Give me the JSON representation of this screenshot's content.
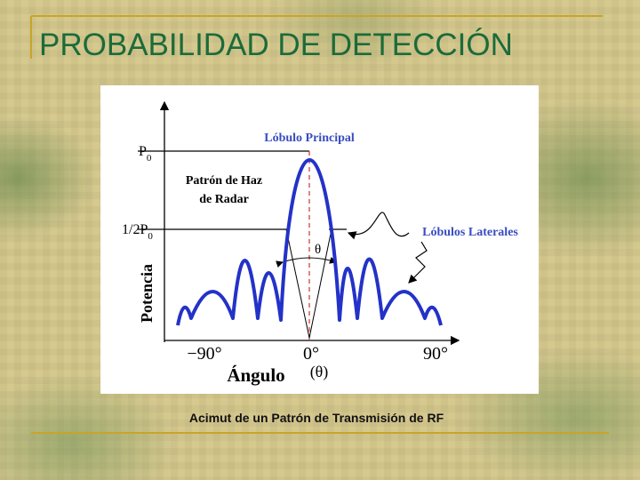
{
  "header": {
    "title": "PROBABILIDAD DE DETECCIÓN"
  },
  "figure": {
    "main_lobe_label": "Lóbulo Principal",
    "beam_label": [
      "Patrón de Haz",
      "de Radar"
    ],
    "side_lobes_label": "Lóbulos Laterales",
    "p0_label": {
      "main": "P",
      "sub": "0"
    },
    "half_label": {
      "main": "1/2P",
      "sub": "0"
    },
    "y_axis_label": "Potencia",
    "beamwidth_symbol": "θ",
    "x_ticks": [
      "−90°",
      "0°",
      "90°"
    ],
    "x_axis_label": "Ángulo",
    "x_axis_symbol": "(θ)"
  },
  "caption": "Acimut de un Patrón de Transmisión de RF"
}
